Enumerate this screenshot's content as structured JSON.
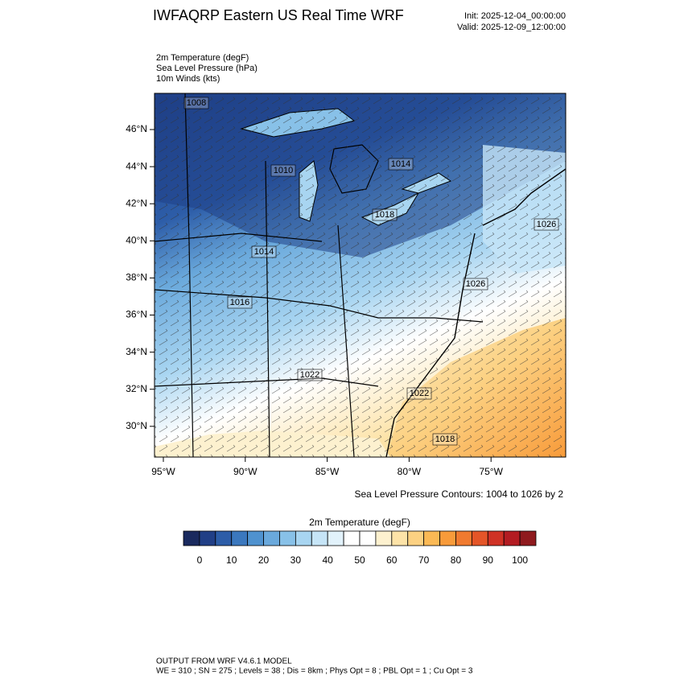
{
  "header": {
    "title": "IWFAQRP Eastern US Real Time WRF",
    "init": "Init: 2025-12-04_00:00:00",
    "valid": "Valid: 2025-12-09_12:00:00"
  },
  "fields": [
    "2m Temperature   (degF)",
    "Sea Level Pressure   (hPa)",
    "10m Winds   (kts)"
  ],
  "map": {
    "lat_labels": [
      "46°N",
      "44°N",
      "42°N",
      "40°N",
      "38°N",
      "36°N",
      "34°N",
      "32°N",
      "30°N"
    ],
    "lon_labels": [
      "95°W",
      "90°W",
      "85°W",
      "80°W",
      "75°W"
    ],
    "contour_labels": [
      "1008",
      "1010",
      "1014",
      "1018",
      "1026",
      "1014",
      "1016",
      "1026",
      "1022",
      "1022",
      "1018"
    ],
    "contour_note": "Sea Level Pressure Contours: 1004 to 1026 by 2"
  },
  "colorbar": {
    "title": "2m Temperature  (degF)",
    "ticks": [
      0,
      10,
      20,
      30,
      40,
      50,
      60,
      70,
      80,
      90,
      100
    ],
    "colors": [
      "#1a2a5e",
      "#213f86",
      "#2d5da8",
      "#3b78be",
      "#4f92cf",
      "#6aa9dc",
      "#88c1e8",
      "#a8d5f1",
      "#c6e5f7",
      "#e2f2fb",
      "#ffffff",
      "#ffffff",
      "#fdf1cf",
      "#fde3a8",
      "#fcd182",
      "#fbb955",
      "#f89b3a",
      "#f07a2f",
      "#e45528",
      "#cf3225",
      "#b31c22",
      "#8f1a1e"
    ]
  },
  "footer": {
    "model": "OUTPUT FROM WRF V4.6.1 MODEL",
    "settings": "WE = 310 ; SN = 275 ; Levels = 38 ; Dis = 8km ; Phys Opt = 8 ; PBL Opt = 1 ; Cu Opt = 3"
  }
}
